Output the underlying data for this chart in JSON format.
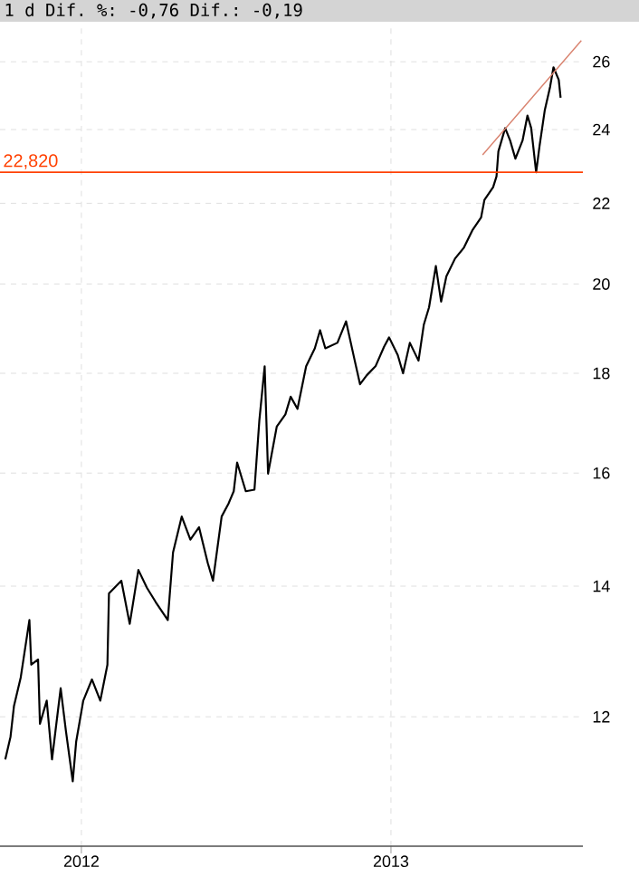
{
  "chart_data": {
    "type": "line",
    "title": "1 d Dif. %: -0,76 Dif.: -0,19",
    "x": [
      2011.754,
      2011.771,
      2011.782,
      2011.804,
      2011.832,
      2011.838,
      2011.86,
      2011.866,
      2011.888,
      2011.905,
      2011.933,
      2011.95,
      2011.972,
      2011.983,
      2012.006,
      2012.034,
      2012.061,
      2012.084,
      2012.089,
      2012.129,
      2012.156,
      2012.184,
      2012.212,
      2012.24,
      2012.279,
      2012.296,
      2012.324,
      2012.352,
      2012.38,
      2012.408,
      2012.425,
      2012.453,
      2012.475,
      2012.492,
      2012.503,
      2012.531,
      2012.559,
      2012.575,
      2012.592,
      2012.603,
      2012.631,
      2012.659,
      2012.676,
      2012.698,
      2012.726,
      2012.754,
      2012.771,
      2012.788,
      2012.827,
      2012.855,
      2012.883,
      2012.9,
      2012.922,
      2012.95,
      2012.978,
      2012.994,
      2013.022,
      2013.039,
      2013.061,
      2013.089,
      2013.106,
      2013.123,
      2013.145,
      2013.162,
      2013.179,
      2013.207,
      2013.235,
      2013.263,
      2013.291,
      2013.302,
      2013.33,
      2013.341,
      2013.347,
      2013.369,
      2013.385,
      2013.402,
      2013.425,
      2013.441,
      2013.453,
      2013.469,
      2013.48,
      2013.497,
      2013.514,
      2013.525,
      2013.542,
      2013.548
    ],
    "series": [
      {
        "color": "#000000",
        "values": [
          11.41,
          11.72,
          12.15,
          12.57,
          13.45,
          12.76,
          12.84,
          11.9,
          12.23,
          11.41,
          12.41,
          11.8,
          11.12,
          11.65,
          12.23,
          12.54,
          12.23,
          12.76,
          13.88,
          14.09,
          13.39,
          14.27,
          13.97,
          13.74,
          13.45,
          14.57,
          15.2,
          14.79,
          15.01,
          14.39,
          14.09,
          15.2,
          15.43,
          15.66,
          16.2,
          15.66,
          15.69,
          17.04,
          18.15,
          15.99,
          16.9,
          17.15,
          17.51,
          17.26,
          18.15,
          18.54,
          18.94,
          18.54,
          18.66,
          19.14,
          18.27,
          17.77,
          17.96,
          18.15,
          18.58,
          18.78,
          18.39,
          18.0,
          18.66,
          18.27,
          19.06,
          19.46,
          20.43,
          19.59,
          20.18,
          20.61,
          20.87,
          21.31,
          21.63,
          22.09,
          22.42,
          22.71,
          23.39,
          24.04,
          23.69,
          23.19,
          23.69,
          24.4,
          24.04,
          22.82,
          23.54,
          24.56,
          25.24,
          25.83,
          25.45,
          24.92
        ]
      },
      {
        "type": "line",
        "color": "#d9826e",
        "x": [
          2013.296,
          2013.615
        ],
        "values": [
          23.29,
          26.66
        ]
      }
    ],
    "xlim": [
      2011.737,
      2013.62
    ],
    "ylim": [
      10.3,
      27.2
    ],
    "xticks": [
      2012,
      2013
    ],
    "yticks": [
      12,
      14,
      16,
      18,
      20,
      22,
      24,
      26
    ],
    "log": "y",
    "grid": true,
    "marker": "none",
    "line_style": "solid",
    "ref_lines": [
      {
        "axis": "y",
        "value": 22.82,
        "label": "22,820",
        "color": "#ff4000"
      }
    ]
  }
}
